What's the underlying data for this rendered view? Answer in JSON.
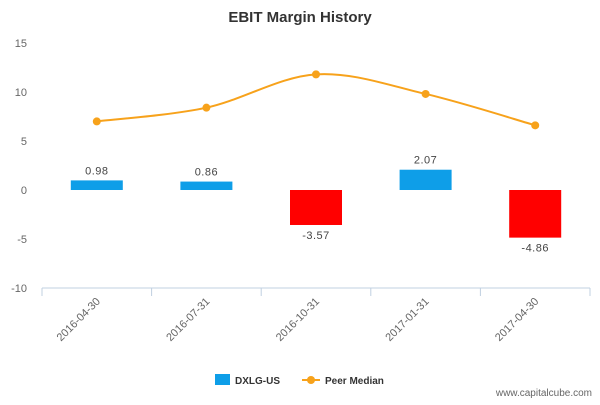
{
  "chart_data": {
    "type": "bar",
    "title": "EBIT Margin History",
    "categories": [
      "2016-04-30",
      "2016-07-31",
      "2016-10-31",
      "2017-01-31",
      "2017-04-30"
    ],
    "series": [
      {
        "name": "DXLG-US",
        "kind": "bar",
        "values": [
          0.98,
          0.86,
          -3.57,
          2.07,
          -4.86
        ],
        "labels": [
          "0.98",
          "0.86",
          "-3.57",
          "2.07",
          "-4.86"
        ],
        "positive_color": "#0e9ee8",
        "negative_color": "#ff0000"
      },
      {
        "name": "Peer Median",
        "kind": "line",
        "values": [
          7.0,
          8.4,
          11.8,
          9.8,
          6.6
        ],
        "color": "#f7a21b"
      }
    ],
    "ylim": [
      -10,
      15
    ],
    "yticks": [
      "15",
      "10",
      "5",
      "0",
      "-5",
      "-10"
    ],
    "xlabel": "",
    "ylabel": "",
    "grid": false,
    "legend": "bottom-center"
  },
  "watermark": "www.capitalcube.com"
}
